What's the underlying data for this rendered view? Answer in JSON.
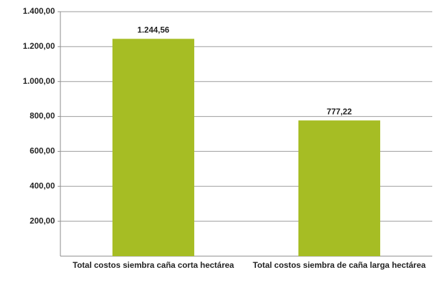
{
  "chart_data": {
    "type": "bar",
    "categories": [
      "Total costos siembra caña corta hectárea",
      "Total costos siembra de caña larga hectárea"
    ],
    "values": [
      1244.56,
      777.22
    ],
    "value_labels": [
      "1.244,56",
      "777,22"
    ],
    "color": "#a6bd24",
    "ylim": [
      0,
      1400
    ],
    "yticks": [
      {
        "value": 200,
        "label": "200,00"
      },
      {
        "value": 400,
        "label": "400,00"
      },
      {
        "value": 600,
        "label": "600,00"
      },
      {
        "value": 800,
        "label": "800,00"
      },
      {
        "value": 1000,
        "label": "1.000,00"
      },
      {
        "value": 1200,
        "label": "1.200,00"
      },
      {
        "value": 1400,
        "label": "1.400,00"
      }
    ],
    "grid": true
  }
}
